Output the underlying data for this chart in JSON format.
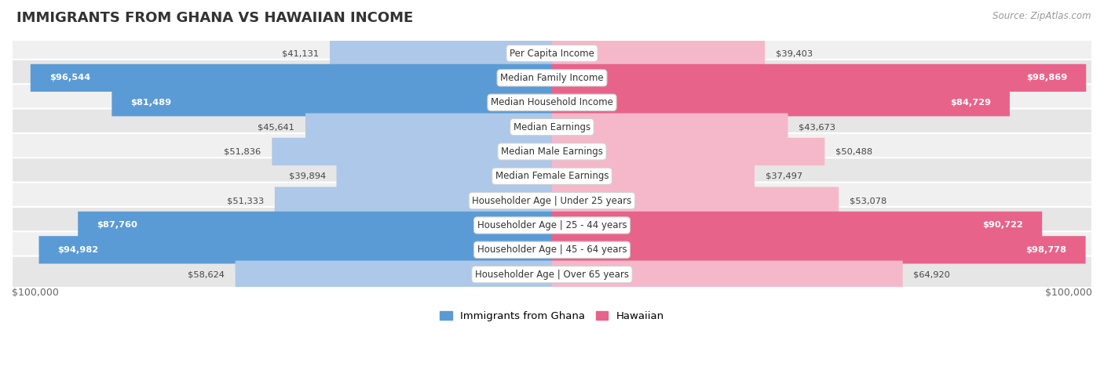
{
  "title": "IMMIGRANTS FROM GHANA VS HAWAIIAN INCOME",
  "source": "Source: ZipAtlas.com",
  "categories": [
    "Per Capita Income",
    "Median Family Income",
    "Median Household Income",
    "Median Earnings",
    "Median Male Earnings",
    "Median Female Earnings",
    "Householder Age | Under 25 years",
    "Householder Age | 25 - 44 years",
    "Householder Age | 45 - 64 years",
    "Householder Age | Over 65 years"
  ],
  "ghana_values": [
    41131,
    96544,
    81489,
    45641,
    51836,
    39894,
    51333,
    87760,
    94982,
    58624
  ],
  "hawaii_values": [
    39403,
    98869,
    84729,
    43673,
    50488,
    37497,
    53078,
    90722,
    98778,
    64920
  ],
  "ghana_color_light": "#adc8e8",
  "ghana_color_dark": "#5b9bd5",
  "hawaii_color_light": "#f5b8cb",
  "hawaii_color_dark": "#e8638a",
  "max_value": 100000,
  "row_bg_even": "#f0f0f0",
  "row_bg_odd": "#e6e6e6",
  "xlabel_left": "$100,000",
  "xlabel_right": "$100,000",
  "legend_ghana": "Immigrants from Ghana",
  "legend_hawaii": "Hawaiian",
  "inside_threshold": 65000
}
